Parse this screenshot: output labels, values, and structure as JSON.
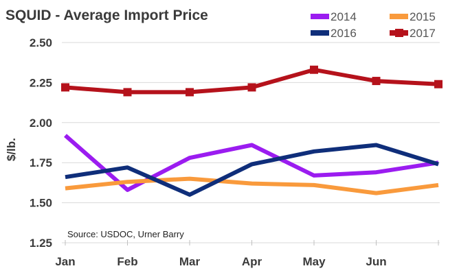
{
  "chart_data": {
    "type": "line",
    "title": "SQUID - Average Import Price",
    "ylabel": "$/lb.",
    "xlabel": "",
    "categories": [
      "Jan",
      "Feb",
      "Mar",
      "Apr",
      "May",
      "Jun",
      ""
    ],
    "ylim": [
      1.25,
      2.5
    ],
    "yticks": [
      "1.25",
      "1.50",
      "1.75",
      "2.00",
      "2.25",
      "2.50"
    ],
    "grid": "horizontal",
    "legend_position": "top-right",
    "source": "Source: USDOC, Urner Barry",
    "series": [
      {
        "name": "2014",
        "color": "#9b1cf0",
        "values": [
          1.92,
          1.58,
          1.78,
          1.86,
          1.67,
          1.69,
          1.75
        ]
      },
      {
        "name": "2015",
        "color": "#f99a3c",
        "values": [
          1.59,
          1.63,
          1.65,
          1.62,
          1.61,
          1.56,
          1.61
        ]
      },
      {
        "name": "2016",
        "color": "#0f2e7a",
        "values": [
          1.66,
          1.72,
          1.55,
          1.74,
          1.82,
          1.86,
          1.74
        ]
      },
      {
        "name": "2017",
        "color": "#b5121b",
        "marker": "square",
        "values": [
          2.22,
          2.19,
          2.19,
          2.22,
          2.33,
          2.26,
          2.24
        ]
      }
    ]
  }
}
